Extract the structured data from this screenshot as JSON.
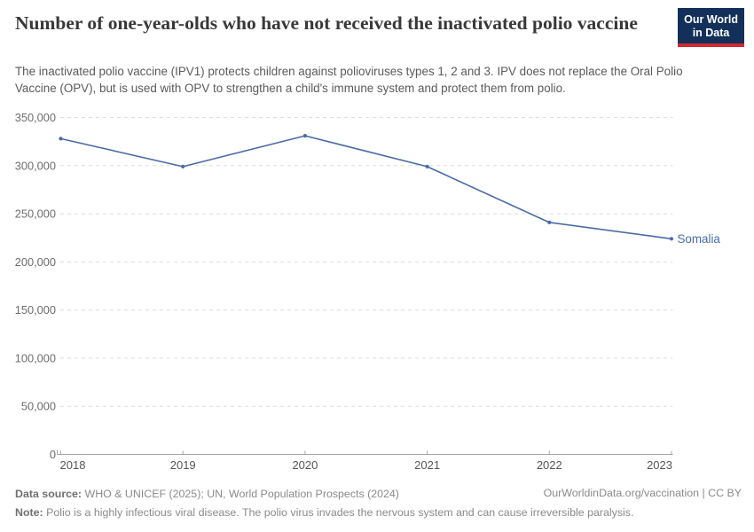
{
  "header": {
    "title": "Number of one-year-olds who have not received the inactivated polio vaccine",
    "subtitle": "The inactivated polio vaccine (IPV1) protects children against polioviruses types 1, 2 and 3. IPV does not replace the Oral Polio Vaccine (OPV), but is used with OPV to strengthen a child's immune system and protect them from polio."
  },
  "logo": {
    "line1": "Our World",
    "line2": "in Data",
    "bg_color": "#12305a",
    "accent_color": "#d12730"
  },
  "chart_data": {
    "type": "line",
    "title": "Number of one-year-olds who have not received the inactivated polio vaccine",
    "x": [
      2018,
      2019,
      2020,
      2021,
      2022,
      2023
    ],
    "series": [
      {
        "name": "Somalia",
        "values": [
          328000,
          299000,
          331000,
          299000,
          241000,
          224000
        ],
        "color": "#4b6ba5"
      }
    ],
    "ylim": [
      0,
      350000
    ],
    "yticks": [
      0,
      50000,
      100000,
      150000,
      200000,
      250000,
      300000,
      350000
    ],
    "xlabel": "",
    "ylabel": "",
    "grid": "horizontal-dashed",
    "legend_position": "end-of-line-label"
  },
  "footer": {
    "data_source_label": "Data source:",
    "data_source_text": " WHO & UNICEF (2025); UN, World Population Prospects (2024)",
    "credit": "OurWorldinData.org/vaccination | CC BY",
    "note_label": "Note:",
    "note_text": " Polio is a highly infectious viral disease. The polio virus invades the nervous system and can cause irreversible paralysis."
  }
}
